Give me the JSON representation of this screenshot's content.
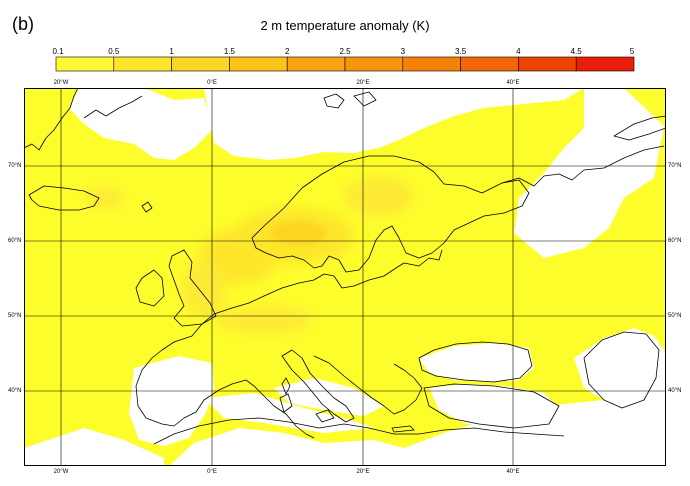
{
  "figure": {
    "panel_label": "(b)",
    "title": "2 m temperature anomaly (K)"
  },
  "colorbar": {
    "ticks": [
      "0.1",
      "0.5",
      "1",
      "1.5",
      "2",
      "2.5",
      "3",
      "3.5",
      "4",
      "4.5",
      "5"
    ],
    "colors": [
      "#fef836",
      "#fde62c",
      "#fcd523",
      "#fbc21a",
      "#f8a512",
      "#f7950f",
      "#f58108",
      "#f26607",
      "#ee4505",
      "#e91d0a"
    ]
  },
  "map": {
    "projection": "equirectangular",
    "lon_range": [
      -28,
      58
    ],
    "lat_range": [
      30,
      80
    ],
    "fill_color": "#fefd2c",
    "no_data_color": "#ffffff",
    "coastline_color": "#000000",
    "grid": true,
    "lon_labels": [
      "20°W",
      "0°E",
      "20°E",
      "40°E"
    ],
    "lat_labels": [
      "70°N",
      "60°N",
      "50°N",
      "40°N"
    ]
  }
}
